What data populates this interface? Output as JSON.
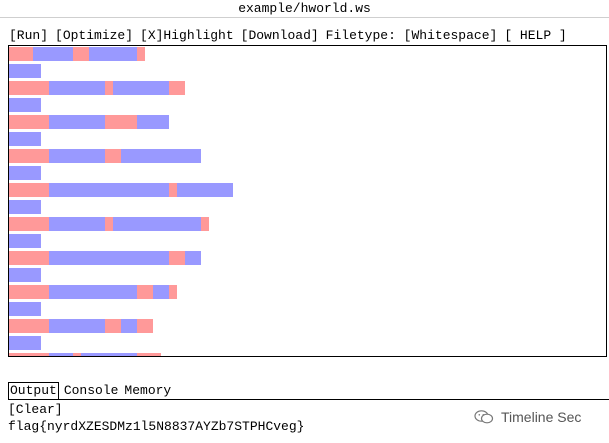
{
  "window": {
    "title": "example/hworld.ws"
  },
  "toolbar": {
    "run": "[Run]",
    "optimize": "[Optimize]",
    "highlight": "[X]Highlight",
    "download": "[Download]",
    "filetype": "Filetype: [Whitespace]",
    "help": "[ HELP ]"
  },
  "editor": {
    "highlight_colors": {
      "space": "#ff9999",
      "tab": "#9999ff"
    },
    "lines": [
      [
        [
          "s",
          3
        ],
        [
          "t",
          5
        ],
        [
          "s",
          2
        ],
        [
          "t",
          6
        ],
        [
          "s",
          1
        ]
      ],
      [
        [
          "t",
          4
        ]
      ],
      [
        [
          "s",
          5
        ],
        [
          "t",
          7
        ],
        [
          "s",
          1
        ],
        [
          "t",
          7
        ],
        [
          "s",
          2
        ]
      ],
      [
        [
          "t",
          4
        ]
      ],
      [
        [
          "s",
          5
        ],
        [
          "t",
          7
        ],
        [
          "s",
          4
        ],
        [
          "t",
          4
        ]
      ],
      [
        [
          "t",
          4
        ]
      ],
      [
        [
          "s",
          5
        ],
        [
          "t",
          7
        ],
        [
          "s",
          2
        ],
        [
          "t",
          10
        ]
      ],
      [
        [
          "t",
          4
        ]
      ],
      [
        [
          "s",
          5
        ],
        [
          "t",
          15
        ],
        [
          "s",
          1
        ],
        [
          "t",
          7
        ]
      ],
      [
        [
          "t",
          4
        ]
      ],
      [
        [
          "s",
          5
        ],
        [
          "t",
          7
        ],
        [
          "s",
          1
        ],
        [
          "t",
          11
        ],
        [
          "s",
          1
        ]
      ],
      [
        [
          "t",
          4
        ]
      ],
      [
        [
          "s",
          5
        ],
        [
          "t",
          15
        ],
        [
          "s",
          2
        ],
        [
          "t",
          2
        ]
      ],
      [
        [
          "t",
          4
        ]
      ],
      [
        [
          "s",
          5
        ],
        [
          "t",
          11
        ],
        [
          "s",
          2
        ],
        [
          "t",
          2
        ],
        [
          "s",
          1
        ]
      ],
      [
        [
          "t",
          4
        ]
      ],
      [
        [
          "s",
          5
        ],
        [
          "t",
          7
        ],
        [
          "s",
          2
        ],
        [
          "t",
          2
        ],
        [
          "s",
          2
        ]
      ],
      [
        [
          "t",
          4
        ]
      ],
      [
        [
          "s",
          5
        ],
        [
          "t",
          3
        ],
        [
          "s",
          1
        ],
        [
          "t",
          7
        ],
        [
          "s",
          3
        ]
      ]
    ]
  },
  "tabs": [
    {
      "label": "Output",
      "active": true
    },
    {
      "label": "Console",
      "active": false
    },
    {
      "label": "Memory",
      "active": false
    }
  ],
  "output": {
    "clear_label": "[Clear]",
    "text": "flag{nyrdXZESDMz1l5N8837AYZb7STPHCveg}"
  },
  "watermark": {
    "text": "Timeline Sec",
    "icon": "wechat-icon"
  }
}
